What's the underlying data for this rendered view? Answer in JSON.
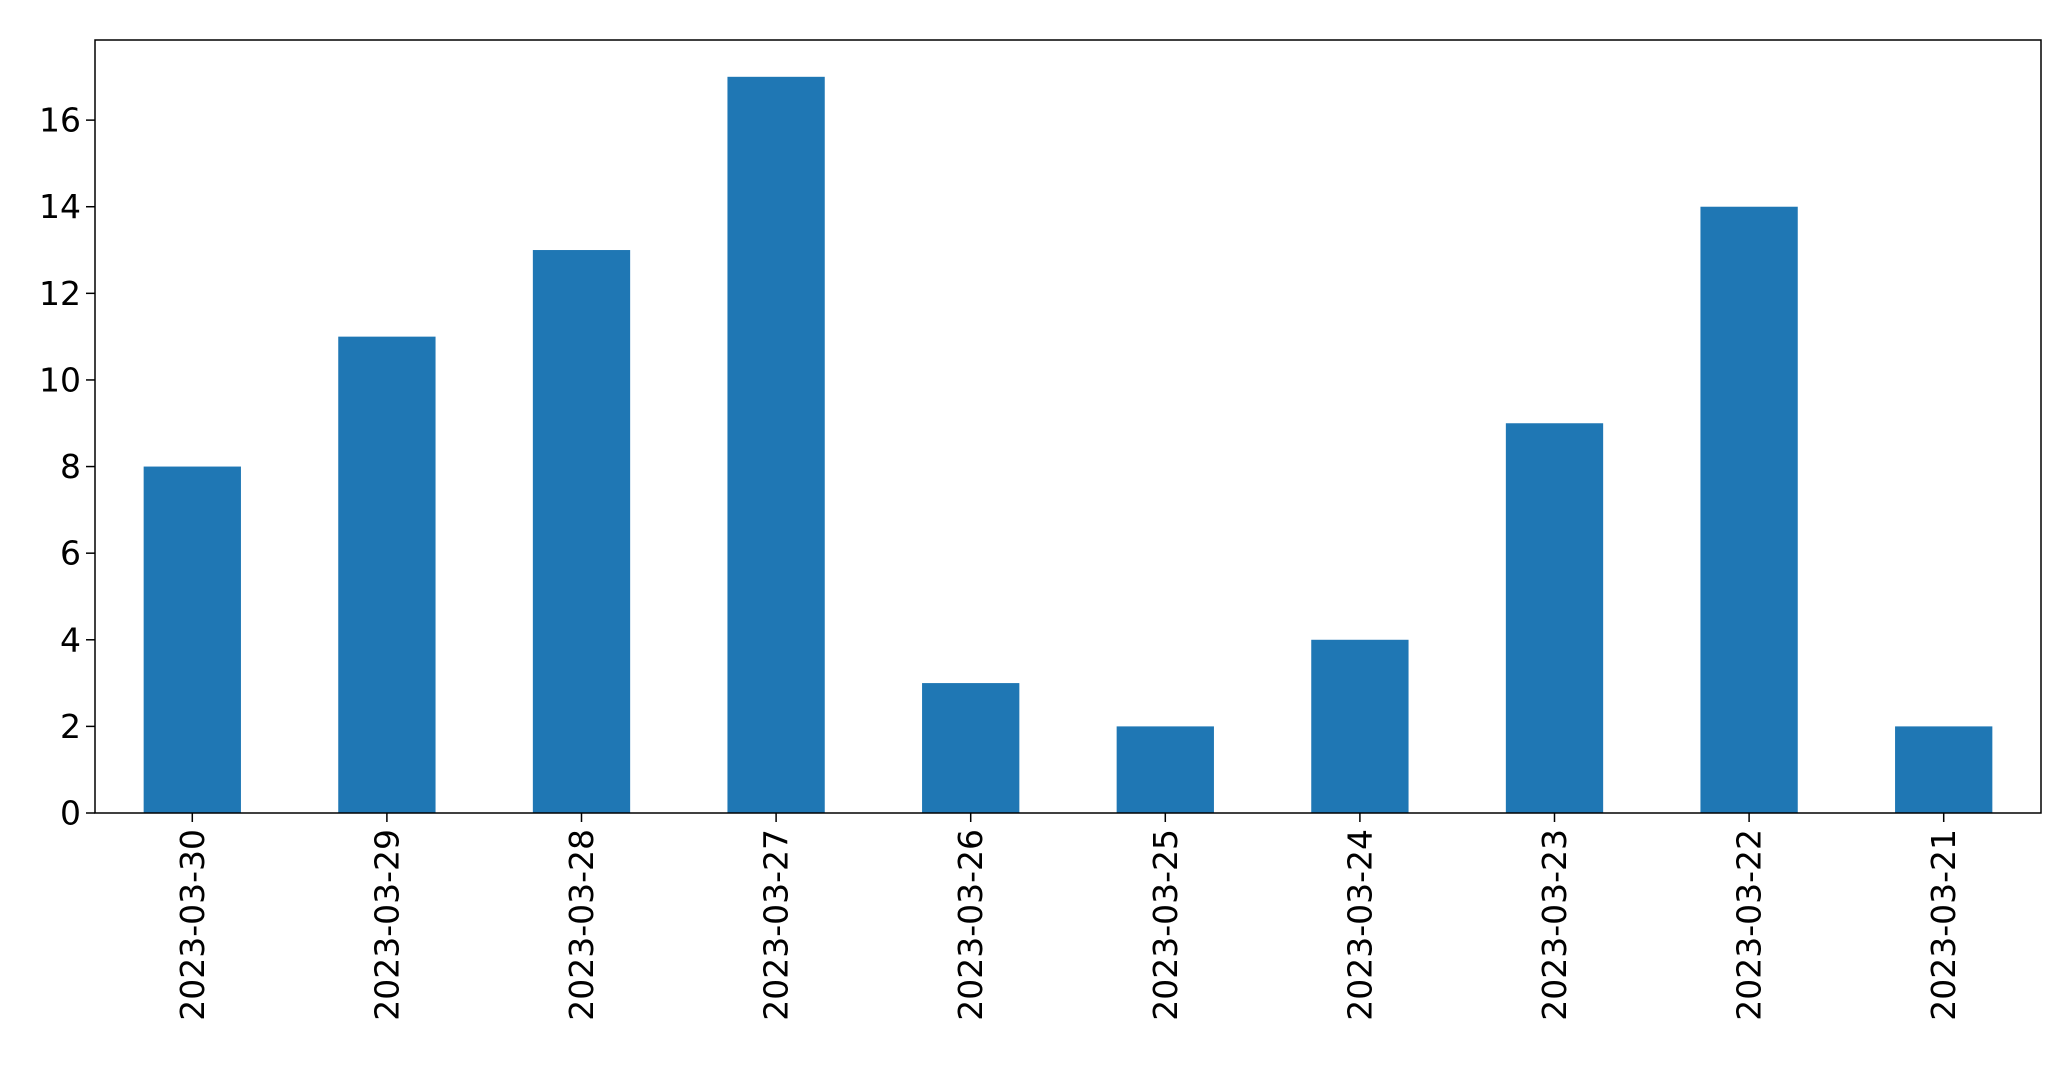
{
  "chart_data": {
    "type": "bar",
    "title": "",
    "xlabel": "",
    "ylabel": "",
    "categories": [
      "2023-03-30",
      "2023-03-29",
      "2023-03-28",
      "2023-03-27",
      "2023-03-26",
      "2023-03-25",
      "2023-03-24",
      "2023-03-23",
      "2023-03-22",
      "2023-03-21"
    ],
    "values": [
      8,
      11,
      13,
      17,
      3,
      2,
      4,
      9,
      14,
      2
    ],
    "ylim": [
      0,
      17.85
    ],
    "yticks": [
      0,
      2,
      4,
      6,
      8,
      10,
      12,
      14,
      16
    ],
    "bar_color": "#1f77b4",
    "grid": false,
    "legend": false,
    "x_tick_rotation": "vertical"
  }
}
